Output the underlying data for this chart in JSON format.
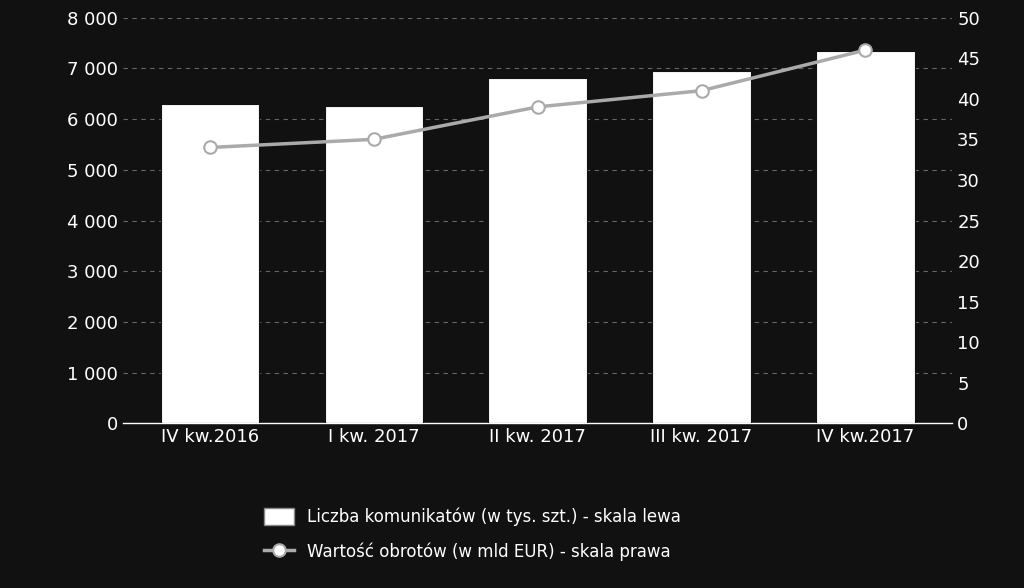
{
  "categories": [
    "IV kw.2016",
    "I kw. 2017",
    "II kw. 2017",
    "III kw. 2017",
    "IV kw.2017"
  ],
  "bar_values": [
    6300,
    6250,
    6800,
    6950,
    7350
  ],
  "line_values": [
    34,
    35,
    39,
    41,
    46
  ],
  "bar_color": "#ffffff",
  "bar_edge_color": "#ffffff",
  "line_color": "#aaaaaa",
  "marker_color": "#ffffff",
  "marker_edge_color": "#aaaaaa",
  "background_color": "#111111",
  "text_color": "#ffffff",
  "grid_color": "#666666",
  "left_ylim": [
    0,
    8000
  ],
  "right_ylim": [
    0,
    50
  ],
  "left_yticks": [
    0,
    1000,
    2000,
    3000,
    4000,
    5000,
    6000,
    7000,
    8000
  ],
  "left_yticklabels": [
    "0",
    "1 000",
    "2 000",
    "3 000",
    "4 000",
    "5 000",
    "6 000",
    "7 000",
    "8 000"
  ],
  "right_yticks": [
    0,
    5,
    10,
    15,
    20,
    25,
    30,
    35,
    40,
    45,
    50
  ],
  "right_yticklabels": [
    "0",
    "5",
    "10",
    "15",
    "20",
    "25",
    "30",
    "35",
    "40",
    "45",
    "50"
  ],
  "legend_bar_label": "Liczba komunikatów (w tys. szt.) - skala lewa",
  "legend_line_label": "Wartość obrotów (w mld EUR) - skala prawa",
  "bar_width": 0.6,
  "figsize": [
    10.24,
    5.88
  ],
  "dpi": 100,
  "tick_fontsize": 13,
  "legend_fontsize": 12
}
